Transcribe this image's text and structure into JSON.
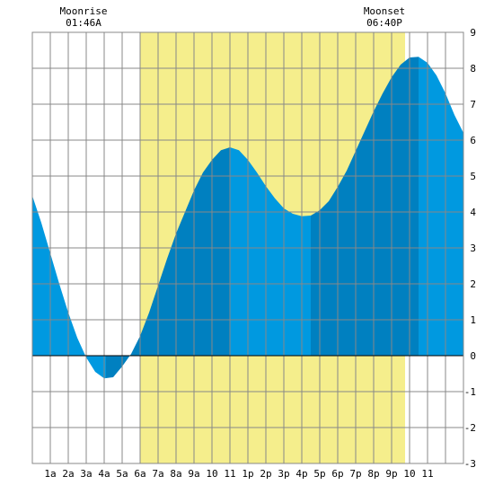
{
  "moon": {
    "moonrise_label": "Moonrise",
    "moonrise_time": "01:46A",
    "moonset_label": "Moonset",
    "moonset_time": "06:40P"
  },
  "chart_data": {
    "type": "area",
    "title": "",
    "xlabel": "",
    "ylabel": "",
    "xlim": [
      0,
      24
    ],
    "ylim": [
      -3,
      9
    ],
    "x_tick_labels": [
      "1a",
      "2a",
      "3a",
      "4a",
      "5a",
      "6a",
      "7a",
      "8a",
      "9a",
      "10",
      "11",
      "1p",
      "2p",
      "3p",
      "4p",
      "5p",
      "6p",
      "7p",
      "8p",
      "9p",
      "10",
      "11"
    ],
    "y_tick_labels": [
      "-3",
      "-2",
      "-1",
      "0",
      "1",
      "2",
      "3",
      "4",
      "5",
      "6",
      "7",
      "8",
      "9"
    ],
    "grid": true,
    "daylight": {
      "start": 6.0,
      "end": 20.75
    },
    "moonrise": 1.77,
    "moonset": 18.67,
    "tide_extremes": [
      {
        "type": "low",
        "x": 4.1,
        "y": -0.65
      },
      {
        "type": "high",
        "x": 11.0,
        "y": 5.8
      },
      {
        "type": "low",
        "x": 15.5,
        "y": 3.9
      },
      {
        "type": "high",
        "x": 21.5,
        "y": 8.3
      }
    ],
    "series": [
      {
        "x": [
          0,
          0.5,
          1,
          1.5,
          2,
          2.5,
          3,
          3.5,
          4,
          4.5,
          5,
          5.5,
          6,
          6.5,
          7,
          7.5,
          8,
          8.5,
          9,
          9.5,
          10,
          10.5,
          11,
          11.5,
          12,
          12.5,
          13,
          13.5,
          14,
          14.5,
          15,
          15.5,
          16,
          16.5,
          17,
          17.5,
          18,
          18.5,
          19,
          19.5,
          20,
          20.5,
          21,
          21.5,
          22,
          22.5,
          23,
          23.5,
          24
        ],
        "y": [
          4.45,
          3.7,
          2.85,
          2.0,
          1.2,
          0.5,
          -0.05,
          -0.45,
          -0.63,
          -0.6,
          -0.3,
          0.05,
          0.55,
          1.2,
          1.95,
          2.7,
          3.4,
          4.0,
          4.6,
          5.1,
          5.45,
          5.72,
          5.8,
          5.72,
          5.45,
          5.1,
          4.72,
          4.38,
          4.1,
          3.95,
          3.88,
          3.9,
          4.05,
          4.3,
          4.7,
          5.15,
          5.7,
          6.25,
          6.8,
          7.3,
          7.75,
          8.1,
          8.3,
          8.32,
          8.15,
          7.8,
          7.3,
          6.7,
          6.2
        ]
      }
    ],
    "colors": {
      "tide_light": "#0099e0",
      "tide_dark": "#0080c0",
      "daylight": "#f5ee8c",
      "grid": "#888888",
      "background": "#ffffff"
    }
  }
}
